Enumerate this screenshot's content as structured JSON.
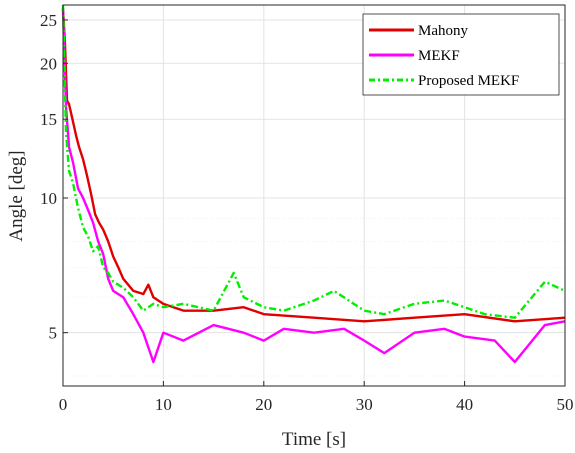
{
  "chart_data": {
    "type": "line",
    "xlabel": "Time [s]",
    "ylabel": "Angle [deg]",
    "xlim": [
      0,
      50
    ],
    "ylim": [
      3.8,
      27
    ],
    "yscale": "log",
    "grid": true,
    "legend_position": "top-right",
    "x_ticks": [
      0,
      10,
      20,
      30,
      40,
      50
    ],
    "y_ticks": [
      5,
      10,
      15,
      20,
      25
    ],
    "series": [
      {
        "name": "Mahony",
        "color": "#e00000",
        "points": [
          [
            0,
            26.5
          ],
          [
            0.2,
            22
          ],
          [
            0.4,
            16.5
          ],
          [
            0.6,
            16.2
          ],
          [
            0.8,
            15.5
          ],
          [
            1.0,
            14.8
          ],
          [
            1.3,
            13.8
          ],
          [
            1.6,
            13.0
          ],
          [
            2.0,
            12.2
          ],
          [
            2.4,
            11.2
          ],
          [
            2.8,
            10.2
          ],
          [
            3.2,
            9.2
          ],
          [
            3.6,
            8.8
          ],
          [
            4.0,
            8.5
          ],
          [
            4.5,
            8.0
          ],
          [
            5.0,
            7.4
          ],
          [
            5.5,
            7.0
          ],
          [
            6.0,
            6.6
          ],
          [
            7.0,
            6.2
          ],
          [
            8.0,
            6.1
          ],
          [
            8.5,
            6.4
          ],
          [
            9.0,
            6.0
          ],
          [
            10,
            5.8
          ],
          [
            12,
            5.6
          ],
          [
            15,
            5.6
          ],
          [
            18,
            5.7
          ],
          [
            20,
            5.5
          ],
          [
            25,
            5.4
          ],
          [
            30,
            5.3
          ],
          [
            35,
            5.4
          ],
          [
            40,
            5.5
          ],
          [
            45,
            5.3
          ],
          [
            50,
            5.4
          ]
        ]
      },
      {
        "name": "MEKF",
        "color": "#ff00ff",
        "points": [
          [
            0,
            26.5
          ],
          [
            0.3,
            16
          ],
          [
            0.6,
            13
          ],
          [
            1.0,
            12
          ],
          [
            1.5,
            10.5
          ],
          [
            2.0,
            10
          ],
          [
            2.5,
            9.4
          ],
          [
            3.0,
            8.8
          ],
          [
            3.5,
            8.0
          ],
          [
            4.0,
            7.5
          ],
          [
            4.5,
            6.6
          ],
          [
            5.0,
            6.2
          ],
          [
            6,
            6.0
          ],
          [
            7,
            5.5
          ],
          [
            8,
            5.0
          ],
          [
            9,
            4.3
          ],
          [
            10,
            5.0
          ],
          [
            12,
            4.8
          ],
          [
            15,
            5.2
          ],
          [
            18,
            5.0
          ],
          [
            20,
            4.8
          ],
          [
            22,
            5.1
          ],
          [
            25,
            5.0
          ],
          [
            28,
            5.1
          ],
          [
            30,
            4.8
          ],
          [
            32,
            4.5
          ],
          [
            35,
            5.0
          ],
          [
            38,
            5.1
          ],
          [
            40,
            4.9
          ],
          [
            43,
            4.8
          ],
          [
            45,
            4.3
          ],
          [
            48,
            5.2
          ],
          [
            50,
            5.3
          ]
        ]
      },
      {
        "name": "Proposed MEKF",
        "color": "#00ee00",
        "points": [
          [
            0,
            27
          ],
          [
            0.3,
            14
          ],
          [
            0.6,
            11.5
          ],
          [
            1.0,
            10.8
          ],
          [
            1.5,
            9.5
          ],
          [
            2.0,
            8.6
          ],
          [
            2.5,
            8.2
          ],
          [
            3.0,
            7.6
          ],
          [
            3.5,
            7.8
          ],
          [
            4.0,
            7.0
          ],
          [
            4.5,
            6.8
          ],
          [
            5.0,
            6.5
          ],
          [
            6,
            6.3
          ],
          [
            7,
            6.0
          ],
          [
            8,
            5.6
          ],
          [
            9,
            5.8
          ],
          [
            10,
            5.7
          ],
          [
            12,
            5.8
          ],
          [
            15,
            5.6
          ],
          [
            17,
            6.8
          ],
          [
            18,
            6.0
          ],
          [
            20,
            5.7
          ],
          [
            22,
            5.6
          ],
          [
            25,
            5.9
          ],
          [
            27,
            6.2
          ],
          [
            30,
            5.6
          ],
          [
            32,
            5.5
          ],
          [
            35,
            5.8
          ],
          [
            38,
            5.9
          ],
          [
            40,
            5.7
          ],
          [
            42,
            5.5
          ],
          [
            45,
            5.4
          ],
          [
            48,
            6.5
          ],
          [
            50,
            6.2
          ]
        ]
      }
    ]
  }
}
